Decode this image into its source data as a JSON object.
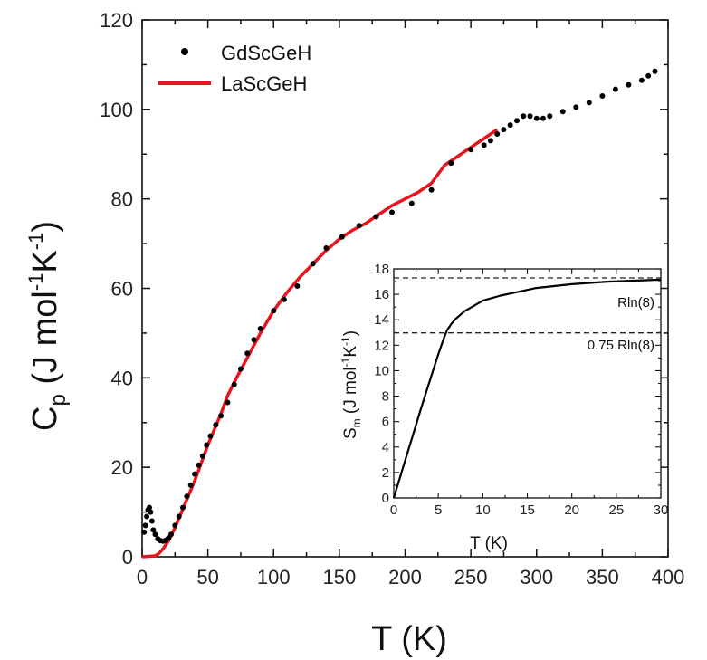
{
  "chart_data": [
    {
      "type": "scatter",
      "xlabel": "T (K)",
      "ylabel": "C_p (J mol^-1 K^-1)",
      "xlim": [
        0,
        400
      ],
      "ylim": [
        0,
        120
      ],
      "xticks": [
        "0",
        "50",
        "100",
        "150",
        "200",
        "250",
        "300",
        "350",
        "400"
      ],
      "yticks": [
        "0",
        "20",
        "40",
        "60",
        "80",
        "100",
        "120"
      ],
      "legend_position": "top-left",
      "series": [
        {
          "name": "GdScGeH",
          "kind": "markers",
          "color": "#000000",
          "x": [
            1.5,
            2.5,
            3.5,
            4.5,
            5.5,
            6.5,
            7.5,
            8.5,
            10,
            12,
            14,
            16,
            18,
            20,
            22,
            25,
            28,
            31,
            34,
            37,
            40,
            43,
            46,
            49,
            52,
            56,
            60,
            65,
            70,
            75,
            80,
            85,
            90,
            100,
            108,
            118,
            130,
            140,
            152,
            165,
            178,
            190,
            205,
            220,
            235,
            250,
            260,
            265,
            270,
            275,
            280,
            285,
            290,
            295,
            300,
            305,
            310,
            320,
            330,
            340,
            350,
            360,
            370,
            380,
            385,
            390
          ],
          "y": [
            5.5,
            7,
            9,
            10.5,
            11,
            10,
            8,
            6,
            5,
            4,
            3.6,
            3.5,
            3.7,
            4.2,
            5,
            7,
            9,
            11,
            13.5,
            16,
            18.5,
            20.5,
            22.5,
            25,
            27,
            29.5,
            31.5,
            34.5,
            38.5,
            42,
            45.5,
            48.5,
            51,
            55,
            57.5,
            60.5,
            65.5,
            69,
            71.5,
            74,
            76,
            77,
            79,
            82,
            88,
            91,
            92,
            93,
            94.5,
            95.5,
            96.5,
            97.5,
            98.5,
            98.5,
            98,
            98,
            98.5,
            99.5,
            100.5,
            101.5,
            103,
            104.5,
            105.5,
            106.5,
            107.5,
            108.5
          ]
        },
        {
          "name": "LaScGeH",
          "kind": "line",
          "color": "#e8141c",
          "x": [
            0,
            10,
            13,
            16,
            20,
            25,
            30,
            35,
            40,
            45,
            50,
            55,
            60,
            65,
            70,
            80,
            90,
            100,
            110,
            120,
            130,
            140,
            150,
            160,
            170,
            180,
            190,
            200,
            210,
            220,
            230,
            240,
            250,
            260,
            270
          ],
          "y": [
            0,
            0.2,
            0.8,
            1.8,
            3.5,
            6.5,
            10,
            13.5,
            17,
            21,
            25,
            28.5,
            32,
            36,
            39,
            44.5,
            50,
            55,
            59,
            62.5,
            65.5,
            68.5,
            71,
            73,
            74.5,
            76.5,
            78.5,
            80,
            81.5,
            83.5,
            87.5,
            89.5,
            91.5,
            93.5,
            95.5
          ]
        }
      ]
    },
    {
      "type": "line",
      "inset": true,
      "xlabel": "T (K)",
      "ylabel": "S_m (J mol^-1 K^-1)",
      "xlim": [
        0,
        30
      ],
      "ylim": [
        0,
        18
      ],
      "xticks": [
        "0",
        "5",
        "10",
        "15",
        "20",
        "25",
        "30"
      ],
      "yticks": [
        "0",
        "2",
        "4",
        "6",
        "8",
        "10",
        "12",
        "14",
        "16",
        "18"
      ],
      "series": [
        {
          "kind": "line",
          "color": "#000000",
          "x": [
            0,
            1,
            2,
            3,
            4,
            5,
            5.7,
            6,
            6.5,
            7,
            8,
            9,
            10,
            12,
            14,
            16,
            18,
            20,
            22,
            24,
            26,
            28,
            30
          ],
          "y": [
            0,
            2.3,
            4.6,
            6.9,
            9.1,
            11.3,
            12.7,
            13.2,
            13.7,
            14.1,
            14.7,
            15.1,
            15.5,
            15.9,
            16.2,
            16.5,
            16.65,
            16.8,
            16.9,
            17.0,
            17.05,
            17.1,
            17.15
          ]
        }
      ],
      "reference_lines": [
        {
          "label": "Rln(8)",
          "y": 17.29
        },
        {
          "label": "0.75 Rln(8)",
          "y": 12.97
        }
      ]
    }
  ],
  "labels": {
    "main_y_symbol": "C",
    "main_y_sub": "p",
    "main_y_units_a": "(J mol",
    "main_y_sup1": "-1",
    "main_y_units_b": "K",
    "main_y_sup2": "-1",
    "main_y_close": ")",
    "main_x_title": "T (K)",
    "inset_x_title": "T (K)",
    "inset_y_symbol": "S",
    "inset_y_sub": "m",
    "inset_y_units_a": "(J mol",
    "inset_y_sup1": "-1",
    "inset_y_units_b": "K",
    "inset_y_sup2": "-1",
    "inset_y_close": ")",
    "legend_gd": "GdScGeH",
    "legend_la": "LaScGeH",
    "ref_full": "Rln(8)",
    "ref_partial": "0.75 Rln(8)"
  },
  "colors": {
    "gd": "#000000",
    "la": "#e8141c"
  }
}
